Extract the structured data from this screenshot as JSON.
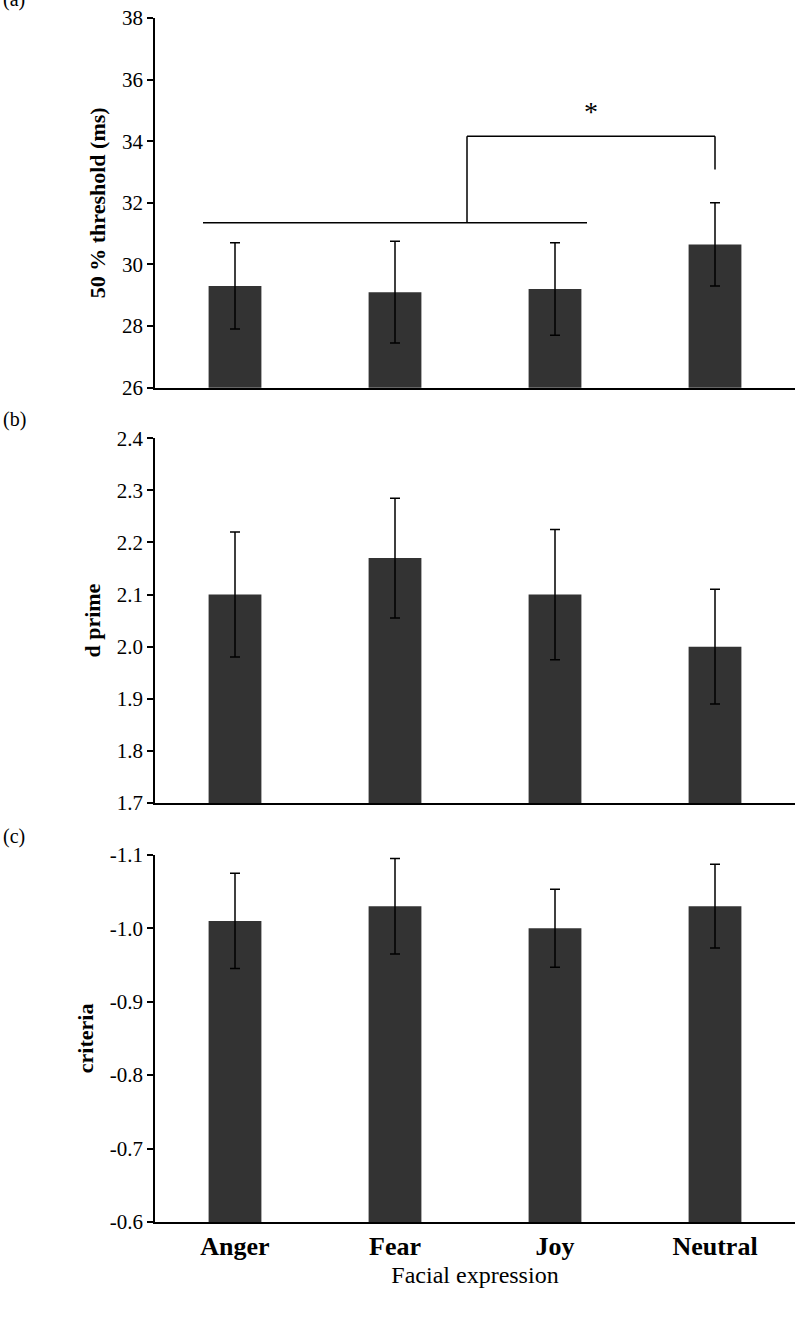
{
  "chart_data": [
    {
      "type": "bar",
      "panel": "(a)",
      "ylabel": "50 % threshold (ms)",
      "categories": [
        "Anger",
        "Fear",
        "Joy",
        "Neutral"
      ],
      "values": [
        29.3,
        29.1,
        29.2,
        30.65
      ],
      "errors": [
        1.4,
        1.65,
        1.5,
        1.35
      ],
      "color": "#333333",
      "ylim": [
        26,
        38
      ],
      "yticks": [
        26,
        28,
        30,
        32,
        34,
        36,
        38
      ],
      "tick_labels": "y",
      "grid": false,
      "significance": {
        "from": [
          "Anger",
          "Joy"
        ],
        "to": "Neutral",
        "label": "*"
      }
    },
    {
      "type": "bar",
      "panel": "(b)",
      "ylabel": "d prime",
      "categories": [
        "Anger",
        "Fear",
        "Joy",
        "Neutral"
      ],
      "values": [
        2.1,
        2.17,
        2.1,
        2.0
      ],
      "errors": [
        0.12,
        0.115,
        0.125,
        0.11
      ],
      "color": "#333333",
      "ylim": [
        1.7,
        2.4
      ],
      "yticks": [
        1.7,
        1.8,
        1.9,
        {
          "value": 2,
          "label": "2.0"
        },
        2.1,
        2.2,
        2.3,
        2.4
      ],
      "tick_labels": "y",
      "grid": false
    },
    {
      "type": "bar",
      "panel": "(c)",
      "ylabel": "criteria",
      "xlabel": "Facial expression",
      "categories": [
        "Anger",
        "Fear",
        "Joy",
        "Neutral"
      ],
      "values": [
        -1.01,
        -1.03,
        -1.0,
        -1.03
      ],
      "errors": [
        0.065,
        0.065,
        0.053,
        0.057
      ],
      "color": "#333333",
      "ylim": [
        -0.6,
        -1.1
      ],
      "yticks": [
        -1.1,
        {
          "value": -1,
          "label": "-1.0"
        },
        -0.9,
        -0.8,
        -0.7,
        -0.6
      ],
      "grid": false
    }
  ]
}
